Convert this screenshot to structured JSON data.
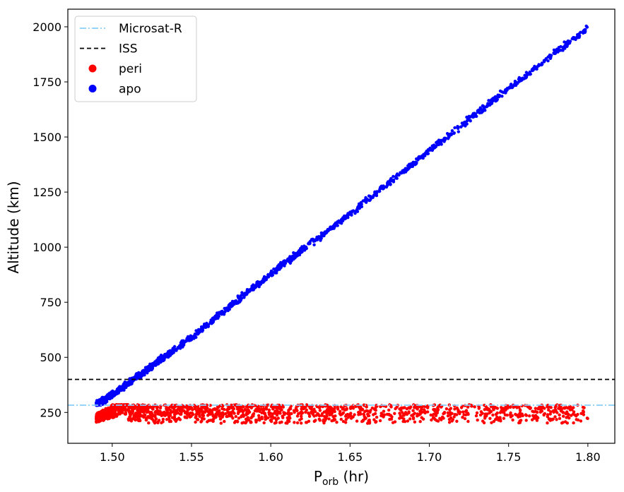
{
  "chart_data": {
    "type": "scatter",
    "title": "",
    "xlabel_main": "P",
    "xlabel_sub": "orb",
    "xlabel_unit": " (hr)",
    "ylabel": "Altitude (km)",
    "xlim": [
      1.472,
      1.817
    ],
    "ylim": [
      110,
      2080
    ],
    "xticks": [
      "1.50",
      "1.55",
      "1.60",
      "1.65",
      "1.70",
      "1.75",
      "1.80"
    ],
    "yticks": [
      "250",
      "500",
      "750",
      "1000",
      "1250",
      "1500",
      "1750",
      "2000"
    ],
    "legend_position": "top-left",
    "legend": [
      {
        "label": "Microsat-R",
        "kind": "line",
        "color": "#87cefa",
        "style": "dashdot"
      },
      {
        "label": "ISS",
        "kind": "line",
        "color": "#000000",
        "style": "dashed"
      },
      {
        "label": "peri",
        "kind": "marker",
        "color": "#ff0000"
      },
      {
        "label": "apo",
        "kind": "marker",
        "color": "#0000ff"
      }
    ],
    "hlines": [
      {
        "name": "Microsat-R",
        "y": 283,
        "x_range": [
          1.472,
          1.817
        ],
        "color": "#87cefa",
        "style": "dashdot"
      },
      {
        "name": "ISS",
        "y": 400,
        "x_range": [
          1.472,
          1.817
        ],
        "color": "#000000",
        "style": "dashed"
      }
    ],
    "series": [
      {
        "name": "apo",
        "color": "#0000ff",
        "note": "apogee altitude rises roughly linearly with orbital period",
        "trend": {
          "x": [
            1.49,
            1.5,
            1.55,
            1.6,
            1.65,
            1.7,
            1.75,
            1.8
          ],
          "y": [
            285,
            330,
            590,
            880,
            1150,
            1440,
            1720,
            1995
          ]
        },
        "scatter_spread": 22,
        "x_range": [
          1.49,
          1.8
        ]
      },
      {
        "name": "peri",
        "color": "#ff0000",
        "note": "perigee altitudes cluster between ~200 and ~285 km",
        "y_range": [
          200,
          285
        ],
        "x_range": [
          1.49,
          1.8
        ]
      }
    ]
  }
}
